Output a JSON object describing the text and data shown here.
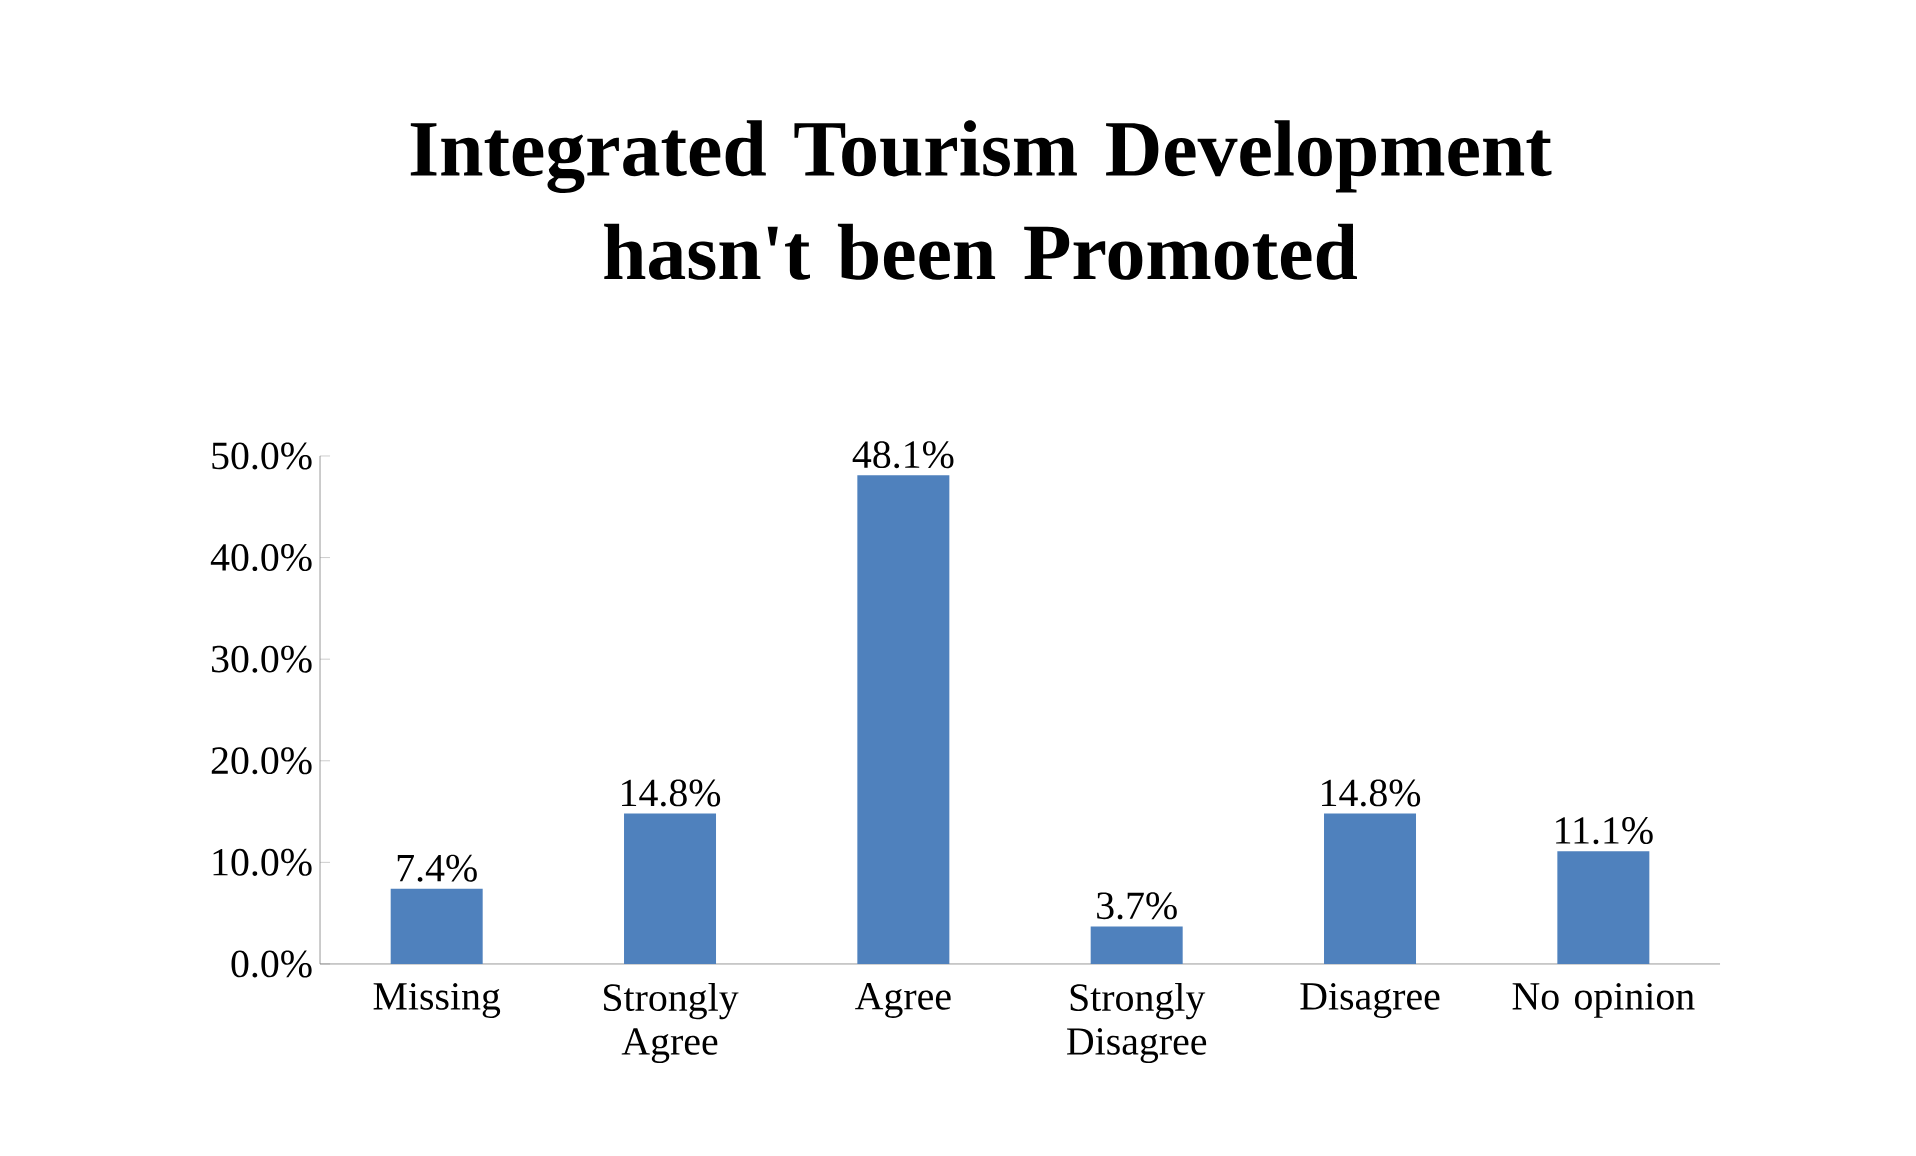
{
  "chart_data": {
    "type": "bar",
    "title": "Integrated Tourism Development hasn't been Promoted",
    "categories": [
      "Missing",
      "Strongly Agree",
      "Agree",
      "Strongly Disagree",
      "Disagree",
      "No opinion"
    ],
    "values": [
      7.4,
      14.8,
      48.1,
      3.7,
      14.8,
      11.1
    ],
    "value_labels": [
      "7.4%",
      "14.8%",
      "48.1%",
      "3.7%",
      "14.8%",
      "11.1%"
    ],
    "color": "#4f81bd",
    "ylim": [
      0,
      50
    ],
    "yticks": [
      {
        "value": 0,
        "label": "0.0%"
      },
      {
        "value": 10,
        "label": "10.0%"
      },
      {
        "value": 20,
        "label": "20.0%"
      },
      {
        "value": 30,
        "label": "30.0%"
      },
      {
        "value": 40,
        "label": "40.0%"
      },
      {
        "value": 50,
        "label": "50.0%"
      }
    ]
  }
}
